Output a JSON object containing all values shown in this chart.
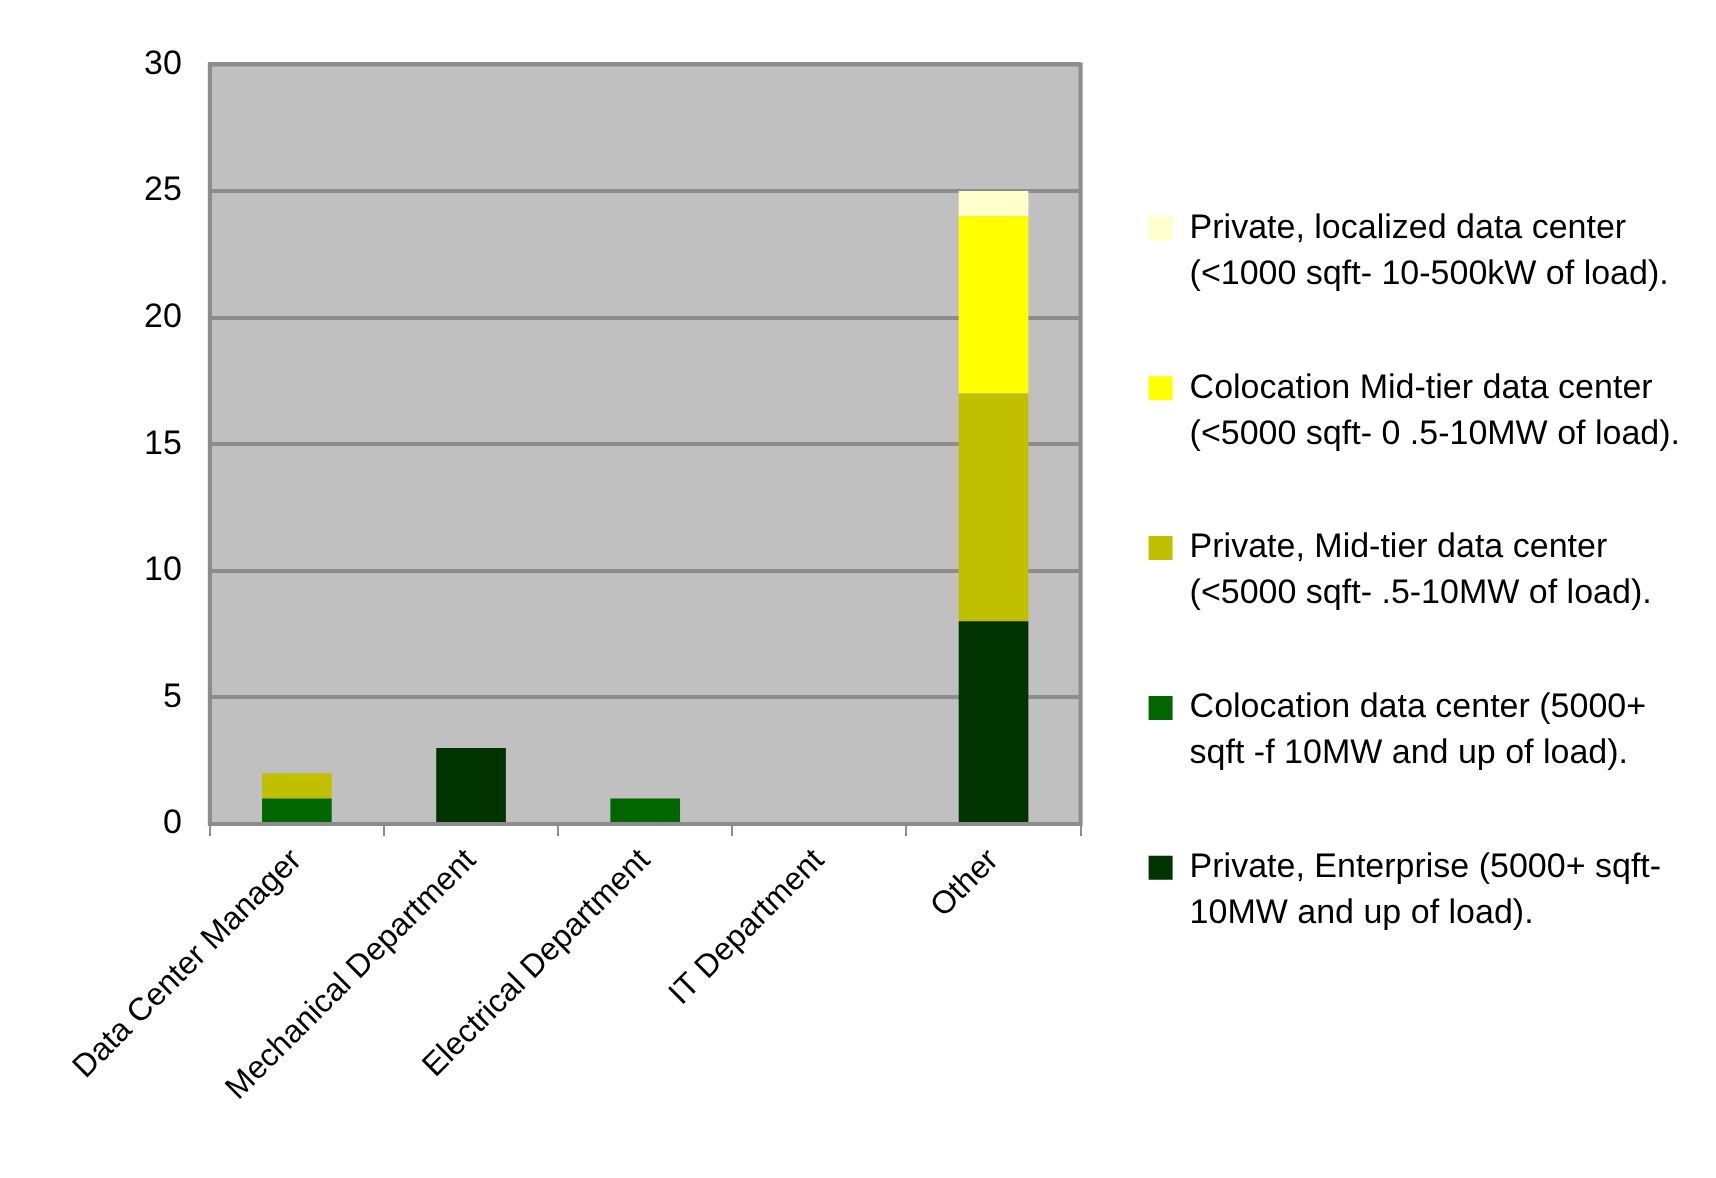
{
  "chart_data": {
    "type": "bar",
    "stacked": true,
    "categories": [
      "Data Center Manager",
      "Mechanical Department",
      "Electrical Department",
      "IT Department",
      "Other"
    ],
    "series": [
      {
        "name": "Private, Enterprise (5000+ sqft- 10MW and up of load).",
        "color": "#003300",
        "values": [
          0,
          3,
          0,
          0,
          8
        ]
      },
      {
        "name": "Colocation data center (5000+ sqft -f 10MW and up of load).",
        "color": "#006600",
        "values": [
          1,
          0,
          1,
          0,
          0
        ]
      },
      {
        "name": "Private, Mid-tier data center (<5000 sqft- .5-10MW of load).",
        "color": "#c0c000",
        "values": [
          1,
          0,
          0,
          0,
          9
        ]
      },
      {
        "name": "Colocation Mid-tier data center (<5000 sqft- 0 .5-10MW of load).",
        "color": "#ffff00",
        "values": [
          0,
          0,
          0,
          0,
          7
        ]
      },
      {
        "name": "Private, localized data center (<1000 sqft- 10-500kW of load).",
        "color": "#ffffcc",
        "values": [
          0,
          0,
          0,
          0,
          1
        ]
      }
    ],
    "ylim": [
      0,
      30
    ],
    "yticks": [
      0,
      5,
      10,
      15,
      20,
      25,
      30
    ],
    "grid": "y",
    "legend": "right"
  }
}
